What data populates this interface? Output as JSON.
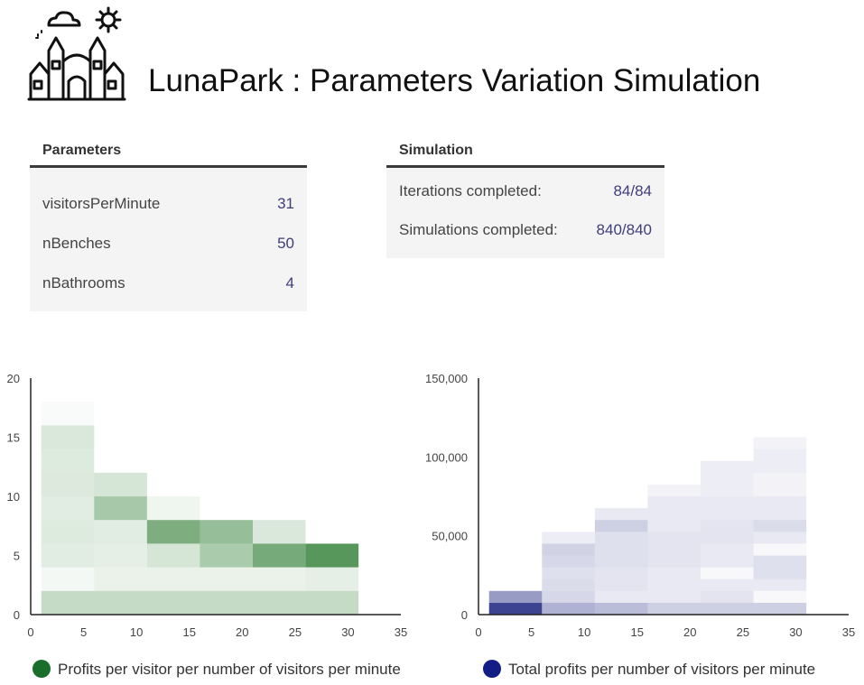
{
  "app": {
    "title": "LunaPark : Parameters Variation Simulation",
    "logo_icon": "amusement-park-castle-icon"
  },
  "parameters": {
    "title": "Parameters",
    "items": [
      {
        "label": "visitorsPerMinute",
        "value": "31"
      },
      {
        "label": "nBenches",
        "value": "50"
      },
      {
        "label": "nBathrooms",
        "value": "4"
      }
    ]
  },
  "simulation": {
    "title": "Simulation",
    "items": [
      {
        "label": "Iterations completed:",
        "value": "84/84"
      },
      {
        "label": "Simulations completed:",
        "value": "840/840"
      }
    ]
  },
  "colors": {
    "green": "#2e7d32",
    "navy": "#1a237e",
    "value_text": "#3f3d7a"
  },
  "chart_data": [
    {
      "type": "heatmap",
      "x_ticks": [
        "0",
        "5",
        "10",
        "15",
        "20",
        "25",
        "30",
        "35"
      ],
      "y_ticks": [
        "0",
        "5",
        "10",
        "15",
        "20"
      ],
      "xlim": [
        0,
        35
      ],
      "ylim": [
        0,
        20
      ],
      "legend": "Profits per visitor per number of visitors per minute",
      "color": "#2e7d32",
      "x_bins": [
        1,
        6,
        11,
        16,
        21,
        26,
        31
      ],
      "cells": [
        [
          [
            0,
            2,
            0.28
          ],
          [
            2,
            4,
            0.05
          ],
          [
            4,
            6,
            0.14
          ],
          [
            6,
            8,
            0.16
          ],
          [
            8,
            10,
            0.14
          ],
          [
            10,
            12,
            0.17
          ],
          [
            12,
            14,
            0.16
          ],
          [
            14,
            16,
            0.18
          ],
          [
            16,
            18,
            0.03
          ]
        ],
        [
          [
            0,
            2,
            0.28
          ],
          [
            2,
            4,
            0.1
          ],
          [
            4,
            6,
            0.12
          ],
          [
            6,
            8,
            0.14
          ],
          [
            8,
            10,
            0.42
          ],
          [
            10,
            12,
            0.2
          ]
        ],
        [
          [
            0,
            2,
            0.28
          ],
          [
            2,
            4,
            0.1
          ],
          [
            4,
            6,
            0.2
          ],
          [
            6,
            8,
            0.62
          ],
          [
            8,
            10,
            0.08
          ]
        ],
        [
          [
            0,
            2,
            0.28
          ],
          [
            2,
            4,
            0.1
          ],
          [
            4,
            6,
            0.4
          ],
          [
            6,
            8,
            0.5
          ]
        ],
        [
          [
            0,
            2,
            0.28
          ],
          [
            2,
            4,
            0.1
          ],
          [
            4,
            6,
            0.65
          ],
          [
            6,
            8,
            0.18
          ]
        ],
        [
          [
            0,
            2,
            0.28
          ],
          [
            2,
            4,
            0.12
          ],
          [
            4,
            6,
            0.8
          ]
        ]
      ]
    },
    {
      "type": "heatmap",
      "x_ticks": [
        "0",
        "5",
        "10",
        "15",
        "20",
        "25",
        "30",
        "35"
      ],
      "y_ticks": [
        "0",
        "50,000",
        "100,000",
        "150,000"
      ],
      "xlim": [
        0,
        35
      ],
      "ylim": [
        0,
        150000
      ],
      "legend": "Total profits per number of visitors per minute",
      "color": "#1a237e",
      "x_bins": [
        1,
        6,
        11,
        16,
        21,
        26,
        31
      ],
      "cells": [
        [
          [
            0,
            7500,
            0.85
          ],
          [
            7500,
            15000,
            0.45
          ]
        ],
        [
          [
            0,
            7500,
            0.35
          ],
          [
            7500,
            15000,
            0.18
          ],
          [
            15000,
            22500,
            0.16
          ],
          [
            22500,
            30000,
            0.14
          ],
          [
            30000,
            37500,
            0.18
          ],
          [
            37500,
            45000,
            0.2
          ],
          [
            45000,
            52500,
            0.08
          ]
        ],
        [
          [
            0,
            7500,
            0.3
          ],
          [
            7500,
            15000,
            0.1
          ],
          [
            15000,
            30000,
            0.12
          ],
          [
            30000,
            52500,
            0.14
          ],
          [
            52500,
            60000,
            0.22
          ],
          [
            60000,
            67500,
            0.1
          ]
        ],
        [
          [
            0,
            7500,
            0.22
          ],
          [
            7500,
            30000,
            0.1
          ],
          [
            30000,
            52500,
            0.12
          ],
          [
            52500,
            75000,
            0.1
          ],
          [
            75000,
            82500,
            0.06
          ]
        ],
        [
          [
            0,
            7500,
            0.22
          ],
          [
            7500,
            15000,
            0.12
          ],
          [
            15000,
            22500,
            0.1
          ],
          [
            22500,
            30000,
            0.03
          ],
          [
            30000,
            45000,
            0.1
          ],
          [
            45000,
            60000,
            0.12
          ],
          [
            60000,
            75000,
            0.1
          ],
          [
            75000,
            97500,
            0.08
          ]
        ],
        [
          [
            0,
            7500,
            0.22
          ],
          [
            7500,
            15000,
            0.03
          ],
          [
            15000,
            22500,
            0.1
          ],
          [
            22500,
            37500,
            0.14
          ],
          [
            37500,
            45000,
            0.03
          ],
          [
            45000,
            52500,
            0.1
          ],
          [
            52500,
            60000,
            0.16
          ],
          [
            60000,
            75000,
            0.1
          ],
          [
            75000,
            90000,
            0.06
          ],
          [
            90000,
            105000,
            0.08
          ],
          [
            105000,
            112500,
            0.06
          ]
        ]
      ]
    }
  ]
}
